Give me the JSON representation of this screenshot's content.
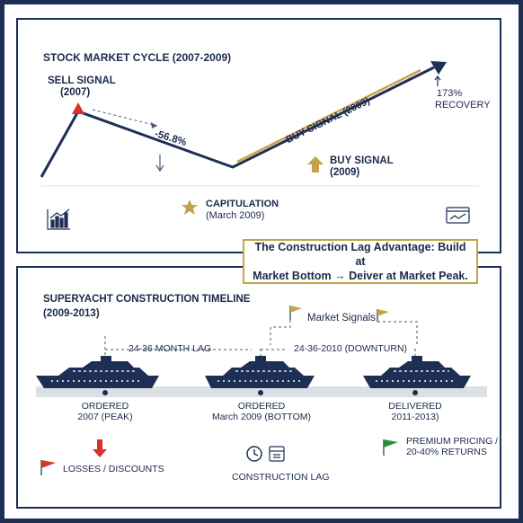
{
  "colors": {
    "navy": "#1d2f55",
    "gold": "#c6a34a",
    "red": "#d9322b",
    "green": "#2e8b3e",
    "track": "#dcdfe4"
  },
  "top_panel": {
    "title": "STOCK MARKET CYCLE (2007-2009)",
    "sell_signal_line1": "SELL SIGNAL",
    "sell_signal_line2": "(2007)",
    "drop_label": "-56.8%",
    "diagonal_buy_label": "BUY SIGNAL (2009)",
    "buy_signal_line1": "BUY SIGNAL",
    "buy_signal_line2": "(2009)",
    "recovery_line1": "173%",
    "recovery_line2": "RECOVERY",
    "capitulation_line1": "CAPITULATION",
    "capitulation_line2": "(March 2009)",
    "left_icon": "bar-chart-icon",
    "right_icon": "monitor-chart-icon",
    "star_icon": "starburst-icon"
  },
  "callout": {
    "line1": "The Construction Lag Advantage: Build at",
    "line2": "Market Bottom → Deiver at Market Peak."
  },
  "bottom_panel": {
    "title_line1": "SUPERYACHT CONSTRUCTION TIMELINE",
    "title_line2": "(2009-2013)",
    "market_signals": "Market Signals",
    "lag_label_1": "24-36 MONTH LAG",
    "lag_label_2": "24-36-2010 (DOWNTURN)",
    "yachts": [
      {
        "label_line1": "ORDERED",
        "label_line2": "2007 (PEAK)"
      },
      {
        "label_line1": "ORDERED",
        "label_line2": "March 2009 (BOTTOM)"
      },
      {
        "label_line1": "DELIVERED",
        "label_line2": "2011-2013)"
      }
    ],
    "losses_label": "LOSSES / DISCOUNTS",
    "construction_lag_label": "CONSTRUCTION LAG",
    "premium_line1": "PREMIUM PRICING /",
    "premium_line2": "20-40% RETURNS",
    "icons": [
      "down-arrow-icon",
      "flag-icon",
      "clock-icon",
      "calendar-icon"
    ]
  }
}
